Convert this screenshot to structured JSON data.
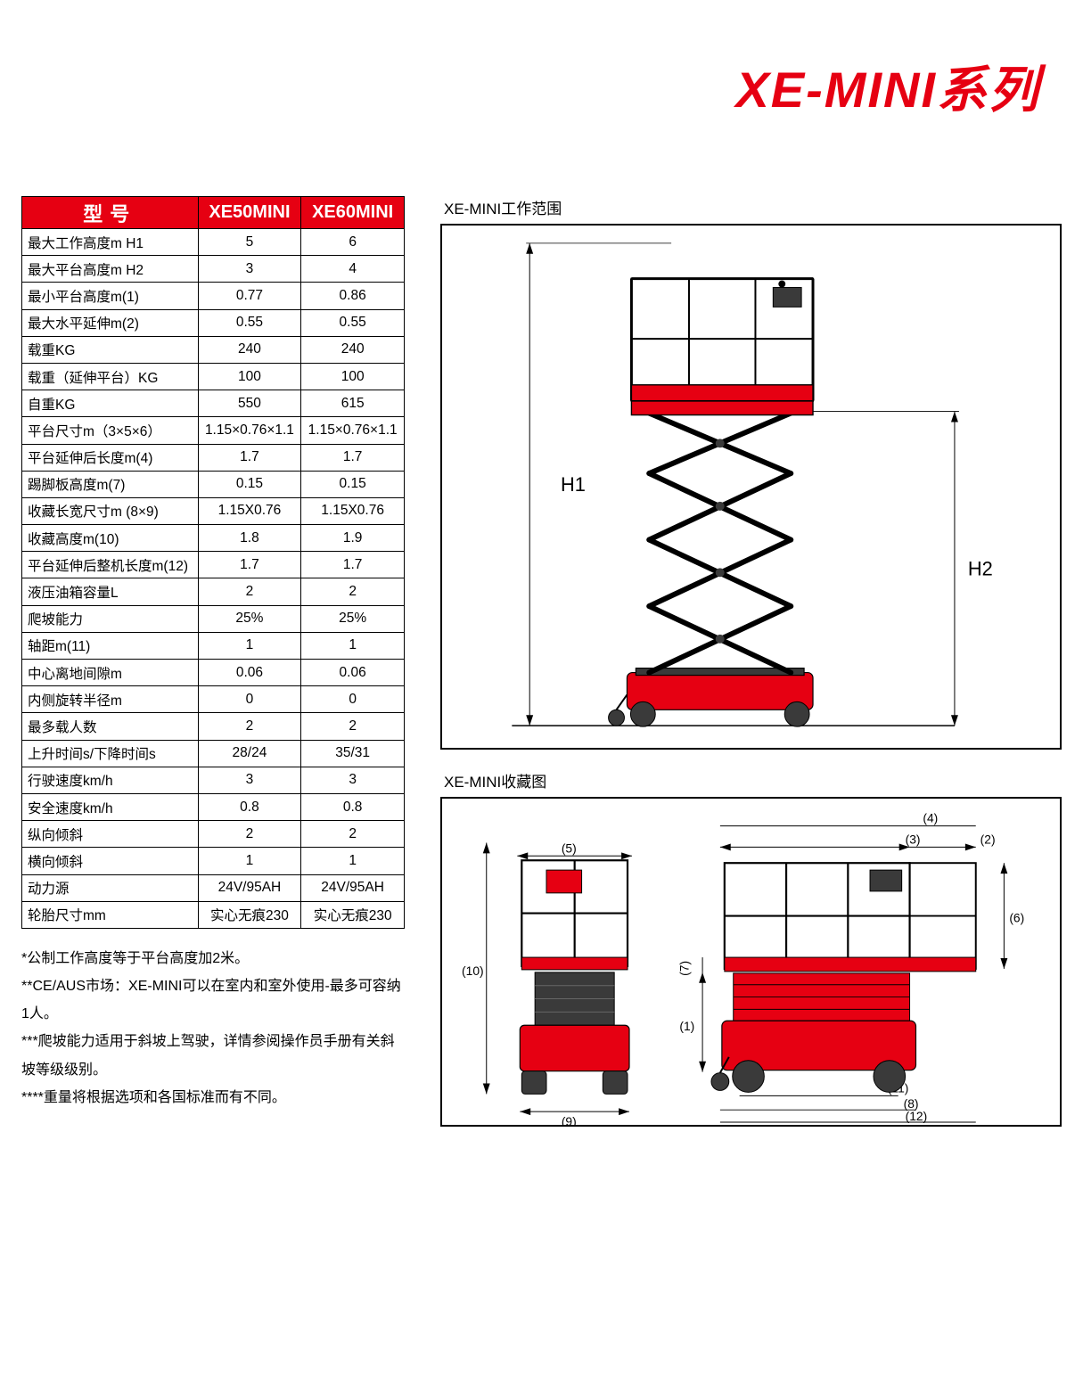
{
  "title": "XE-MINI系列",
  "table": {
    "header_model": "型号",
    "col1": "XE50MINI",
    "col2": "XE60MINI",
    "rows": [
      {
        "label": "最大工作高度m H1",
        "v1": "5",
        "v2": "6"
      },
      {
        "label": "最大平台高度m H2",
        "v1": "3",
        "v2": "4"
      },
      {
        "label": "最小平台高度m(1)",
        "v1": "0.77",
        "v2": "0.86"
      },
      {
        "label": "最大水平延伸m(2)",
        "v1": "0.55",
        "v2": "0.55"
      },
      {
        "label": "载重KG",
        "v1": "240",
        "v2": "240"
      },
      {
        "label": "载重（延伸平台）KG",
        "v1": "100",
        "v2": "100"
      },
      {
        "label": "自重KG",
        "v1": "550",
        "v2": "615"
      },
      {
        "label": "平台尺寸m（3×5×6）",
        "v1": "1.15×0.76×1.1",
        "v2": "1.15×0.76×1.1"
      },
      {
        "label": "平台延伸后长度m(4)",
        "v1": "1.7",
        "v2": "1.7"
      },
      {
        "label": "踢脚板高度m(7)",
        "v1": "0.15",
        "v2": "0.15"
      },
      {
        "label": "收藏长宽尺寸m (8×9)",
        "v1": "1.15X0.76",
        "v2": "1.15X0.76"
      },
      {
        "label": "收藏高度m(10)",
        "v1": "1.8",
        "v2": "1.9"
      },
      {
        "label": "平台延伸后整机长度m(12)",
        "v1": "1.7",
        "v2": "1.7"
      },
      {
        "label": "液压油箱容量L",
        "v1": "2",
        "v2": "2"
      },
      {
        "label": "爬坡能力",
        "v1": "25%",
        "v2": "25%"
      },
      {
        "label": "轴距m(11)",
        "v1": "1",
        "v2": "1"
      },
      {
        "label": "中心离地间隙m",
        "v1": "0.06",
        "v2": "0.06"
      },
      {
        "label": "内侧旋转半径m",
        "v1": "0",
        "v2": "0"
      },
      {
        "label": "最多载人数",
        "v1": "2",
        "v2": "2"
      },
      {
        "label": "上升时间s/下降时间s",
        "v1": "28/24",
        "v2": "35/31"
      },
      {
        "label": "行驶速度km/h",
        "v1": "3",
        "v2": "3"
      },
      {
        "label": "安全速度km/h",
        "v1": "0.8",
        "v2": "0.8"
      },
      {
        "label": "纵向倾斜",
        "v1": "2",
        "v2": "2"
      },
      {
        "label": "横向倾斜",
        "v1": "1",
        "v2": "1"
      },
      {
        "label": "动力源",
        "v1": "24V/95AH",
        "v2": "24V/95AH"
      },
      {
        "label": "轮胎尺寸mm",
        "v1": "实心无痕230",
        "v2": "实心无痕230"
      }
    ]
  },
  "footnotes": [
    "*公制工作高度等于平台高度加2米。",
    "**CE/AUS市场：XE-MINI可以在室内和室外使用-最多可容纳1人。",
    "***爬坡能力适用于斜坡上驾驶，详情参阅操作员手册有关斜坡等级级别。",
    "****重量将根据选项和各国标准而有不同。"
  ],
  "diagrams": {
    "extended_title": "XE-MINI工作范围",
    "stowed_title": "XE-MINI收藏图",
    "label_H1": "H1",
    "label_H2": "H2",
    "dims": {
      "d1": "(1)",
      "d2": "(2)",
      "d3": "(3)",
      "d4": "(4)",
      "d5": "(5)",
      "d6": "(6)",
      "d7": "(7)",
      "d8": "(8)",
      "d9": "(9)",
      "d10": "(10)",
      "d11": "(11)",
      "d12": "(12)"
    },
    "colors": {
      "machine_red": "#e60012",
      "machine_dark": "#3a3a3a",
      "outline": "#000000",
      "dim_line": "#000000"
    }
  }
}
